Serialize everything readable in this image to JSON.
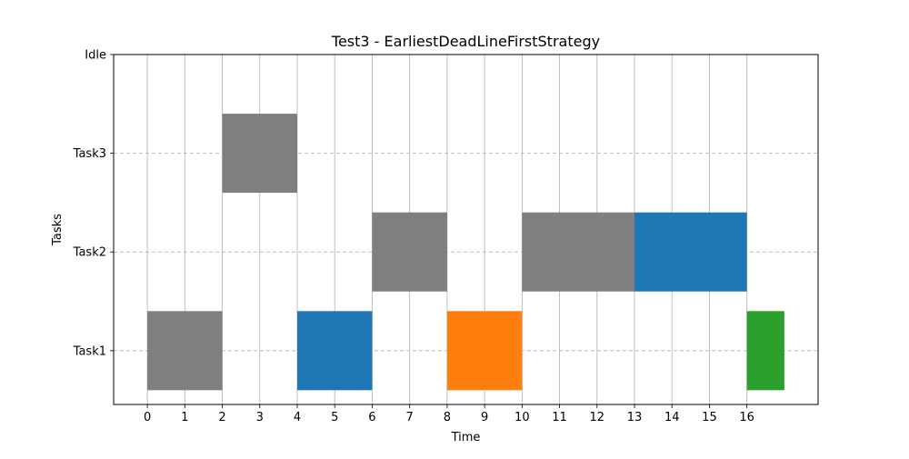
{
  "chart_data": {
    "type": "gantt",
    "title": "Test3 - EarliestDeadLineFirstStrategy",
    "xlabel": "Time",
    "ylabel": "Tasks",
    "categories": [
      "Task1",
      "Task2",
      "Task3",
      "Idle"
    ],
    "xticks": [
      0,
      1,
      2,
      3,
      4,
      5,
      6,
      7,
      8,
      9,
      10,
      11,
      12,
      13,
      14,
      15,
      16
    ],
    "xlim": [
      -0.9,
      17.9
    ],
    "grid": {
      "x": "solid",
      "y": "dashed"
    },
    "bars": [
      {
        "task": "Task1",
        "start": 0,
        "end": 2,
        "color": "#7f7f7f"
      },
      {
        "task": "Task3",
        "start": 2,
        "end": 4,
        "color": "#7f7f7f"
      },
      {
        "task": "Task1",
        "start": 4,
        "end": 6,
        "color": "#1f77b4"
      },
      {
        "task": "Task2",
        "start": 6,
        "end": 8,
        "color": "#7f7f7f"
      },
      {
        "task": "Task1",
        "start": 8,
        "end": 10,
        "color": "#ff7f0e"
      },
      {
        "task": "Task2",
        "start": 10,
        "end": 13,
        "color": "#7f7f7f"
      },
      {
        "task": "Task2",
        "start": 13,
        "end": 16,
        "color": "#1f77b4"
      },
      {
        "task": "Task1",
        "start": 16,
        "end": 17,
        "color": "#2ca02c"
      }
    ]
  }
}
